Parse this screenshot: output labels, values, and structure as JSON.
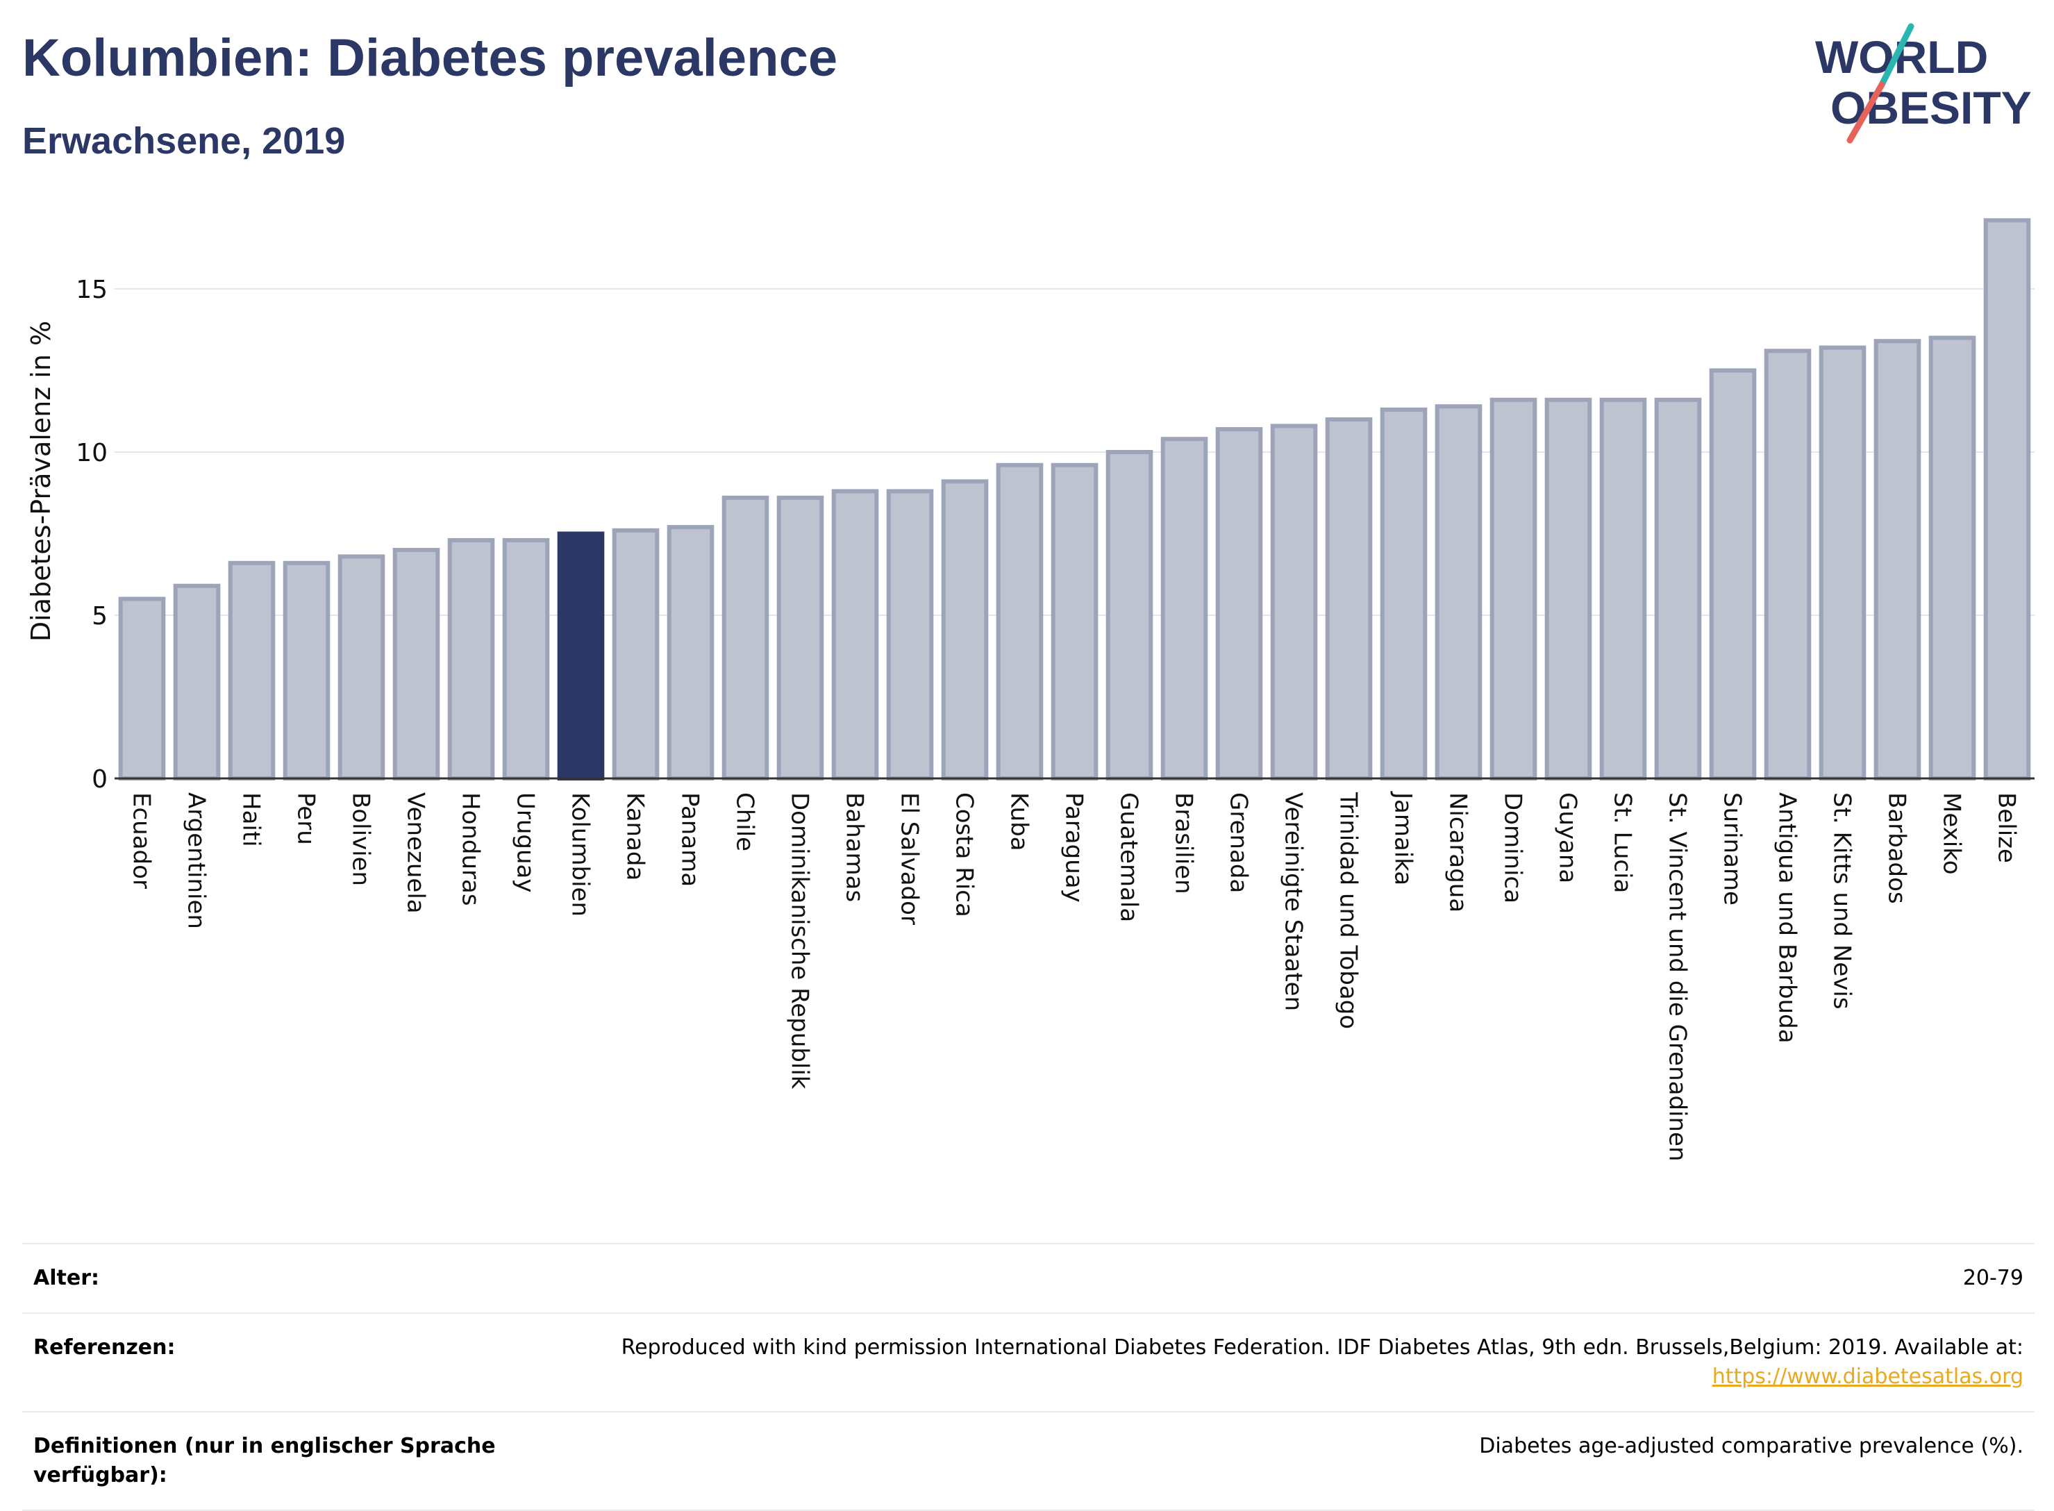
{
  "header": {
    "title": "Kolumbien: Diabetes prevalence",
    "subtitle": "Erwachsene, 2019"
  },
  "logo": {
    "line1": "WORLD",
    "line2": "OBESITY",
    "colors": {
      "text": "#2b3764",
      "slash_top": "#2bb5b0",
      "slash_bottom": "#e5635a"
    }
  },
  "colors": {
    "highlight_bar": "#2b3764",
    "default_bar_fill": "#bfc3d0",
    "default_bar_stroke": "#9da3b8",
    "gridline": "#e3e6ee"
  },
  "chart_data": {
    "type": "bar",
    "title": "",
    "xlabel": "",
    "ylabel": "Diabetes-Prävalenz in %",
    "ylim": [
      0,
      17.5
    ],
    "yticks": [
      0,
      5,
      10,
      15
    ],
    "grid": true,
    "highlight": "Kolumbien",
    "categories": [
      "Ecuador",
      "Argentinien",
      "Haiti",
      "Peru",
      "Bolivien",
      "Venezuela",
      "Honduras",
      "Uruguay",
      "Kolumbien",
      "Kanada",
      "Panama",
      "Chile",
      "Dominikanische Republik",
      "Bahamas",
      "El Salvador",
      "Costa Rica",
      "Kuba",
      "Paraguay",
      "Guatemala",
      "Brasilien",
      "Grenada",
      "Vereinigte Staaten",
      "Trinidad und Tobago",
      "Jamaika",
      "Nicaragua",
      "Dominica",
      "Guyana",
      "St. Lucia",
      "St. Vincent und die Grenadinen",
      "Suriname",
      "Antigua und Barbuda",
      "St. Kitts und Nevis",
      "Barbados",
      "Mexiko",
      "Belize"
    ],
    "values": [
      5.5,
      5.9,
      6.6,
      6.6,
      6.8,
      7.0,
      7.3,
      7.3,
      7.5,
      7.6,
      7.7,
      8.6,
      8.6,
      8.8,
      8.8,
      9.1,
      9.6,
      9.6,
      10.0,
      10.4,
      10.7,
      10.8,
      11.0,
      11.3,
      11.4,
      11.6,
      11.6,
      11.6,
      11.6,
      12.5,
      13.1,
      13.2,
      13.4,
      13.5,
      17.1
    ]
  },
  "info": {
    "age_label": "Alter:",
    "age_value": "20-79",
    "ref_label": "Referenzen:",
    "ref_text": "Reproduced with kind permission International Diabetes Federation. IDF Diabetes Atlas, 9th edn. Brussels,Belgium: 2019. Available at:",
    "ref_link": "https://www.diabetesatlas.org",
    "def_label": "Definitionen (nur in englischer Sprache verfügbar):",
    "def_value": "Diabetes age-adjusted comparative prevalence (%)."
  }
}
